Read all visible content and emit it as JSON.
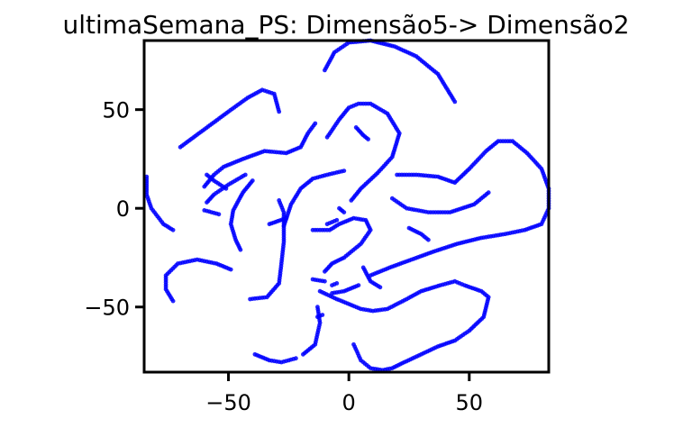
{
  "chart_data": {
    "type": "scatter",
    "title": "ultimaSemana_PS: Dimensão5-> Dimensão2",
    "xlabel": "",
    "ylabel": "",
    "xlim": [
      -85,
      83
    ],
    "ylim": [
      -83,
      85
    ],
    "xticks": [
      {
        "value": -50,
        "label": "−50"
      },
      {
        "value": 0,
        "label": "0"
      },
      {
        "value": 50,
        "label": "50"
      }
    ],
    "yticks": [
      {
        "value": 50,
        "label": "50"
      },
      {
        "value": 0,
        "label": "0"
      },
      {
        "value": -50,
        "label": "−50"
      }
    ],
    "grid": false,
    "series": [
      {
        "color": "#0000ff",
        "curves": [
          [
            [
              -70,
              31
            ],
            [
              -60,
              40
            ],
            [
              -50,
              49
            ],
            [
              -42,
              56
            ],
            [
              -36,
              60
            ],
            [
              -31,
              58
            ],
            [
              -29,
              49
            ]
          ],
          [
            [
              -9,
              36
            ],
            [
              -4,
              45
            ],
            [
              0,
              51
            ],
            [
              4,
              53
            ],
            [
              9,
              53
            ],
            [
              16,
              48
            ],
            [
              21,
              38
            ],
            [
              18,
              26
            ],
            [
              12,
              18
            ],
            [
              5,
              10
            ],
            [
              1,
              4
            ]
          ],
          [
            [
              -10,
              70
            ],
            [
              -6,
              79
            ],
            [
              0,
              84
            ],
            [
              9,
              85
            ],
            [
              19,
              82
            ],
            [
              28,
              77
            ],
            [
              37,
              68
            ],
            [
              44,
              54
            ]
          ],
          [
            [
              3,
              41
            ],
            [
              6,
              37
            ],
            [
              8,
              35
            ]
          ],
          [
            [
              -40,
              14
            ],
            [
              -44,
              8
            ],
            [
              -48,
              -1
            ],
            [
              -49,
              -8
            ],
            [
              -47,
              -16
            ],
            [
              -45,
              -21
            ]
          ],
          [
            [
              -41,
              -46
            ],
            [
              -34,
              -45
            ],
            [
              -29,
              -38
            ],
            [
              -28,
              -28
            ],
            [
              -27,
              -17
            ],
            [
              -27,
              -2
            ],
            [
              -29,
              4
            ]
          ],
          [
            [
              -19,
              -74
            ],
            [
              -14,
              -69
            ],
            [
              -12,
              -58
            ],
            [
              -13,
              -50
            ]
          ],
          [
            [
              -39,
              -74
            ],
            [
              -33,
              -77
            ],
            [
              -28,
              -78
            ],
            [
              -22,
              -76
            ]
          ],
          [
            [
              -84,
              16
            ],
            [
              -84,
              7
            ],
            [
              -82,
              0
            ],
            [
              -77,
              -8
            ],
            [
              -73,
              -11
            ]
          ],
          [
            [
              -73,
              -47
            ],
            [
              -76,
              -41
            ],
            [
              -76,
              -34
            ],
            [
              -71,
              -28
            ],
            [
              -63,
              -26
            ],
            [
              -55,
              -28
            ],
            [
              -49,
              -31
            ]
          ],
          [
            [
              -2,
              19
            ],
            [
              -9,
              17
            ],
            [
              -15,
              15
            ],
            [
              -20,
              10
            ],
            [
              -24,
              2
            ],
            [
              -27,
              -9
            ]
          ],
          [
            [
              -8,
              -11
            ],
            [
              -4,
              -8
            ],
            [
              2,
              -5
            ],
            [
              7,
              -6
            ],
            [
              9,
              -11
            ],
            [
              5,
              -18
            ],
            [
              -2,
              -25
            ],
            [
              -7,
              -28
            ],
            [
              -10,
              -32
            ]
          ],
          [
            [
              -13,
              -55
            ],
            [
              -11,
              -54
            ]
          ],
          [
            [
              -12,
              -42
            ],
            [
              -5,
              -46
            ],
            [
              5,
              -51
            ],
            [
              10,
              -52
            ],
            [
              16,
              -51
            ],
            [
              24,
              -46
            ],
            [
              30,
              -42
            ],
            [
              38,
              -39
            ],
            [
              44,
              -37
            ],
            [
              48,
              -39
            ],
            [
              55,
              -42
            ],
            [
              58,
              -45
            ],
            [
              56,
              -55
            ],
            [
              50,
              -62
            ],
            [
              44,
              -67
            ],
            [
              37,
              -70
            ],
            [
              30,
              -74
            ],
            [
              23,
              -78
            ],
            [
              18,
              -81
            ],
            [
              14,
              -82
            ],
            [
              9,
              -81
            ],
            [
              5,
              -77
            ],
            [
              2,
              -69
            ]
          ],
          [
            [
              -33,
              -8
            ],
            [
              -26,
              -5
            ]
          ],
          [
            [
              -15,
              -11
            ],
            [
              -9,
              -11
            ]
          ],
          [
            [
              -9,
              -8
            ],
            [
              -5,
              -6
            ]
          ],
          [
            [
              -15,
              -36
            ],
            [
              -10,
              -37
            ]
          ],
          [
            [
              -7,
              -39
            ],
            [
              -5,
              -38
            ]
          ],
          [
            [
              -2,
              -2
            ],
            [
              -4,
              0
            ]
          ],
          [
            [
              -43,
              17
            ],
            [
              -50,
              12
            ],
            [
              -56,
              7
            ],
            [
              -59,
              3
            ]
          ],
          [
            [
              -60,
              -1
            ],
            [
              -57,
              -2
            ],
            [
              -54,
              -3
            ]
          ],
          [
            [
              -51,
              10
            ],
            [
              -56,
              14
            ],
            [
              -59,
              17
            ]
          ],
          [
            [
              -7,
              -43
            ],
            [
              -2,
              -42
            ],
            [
              4,
              -39
            ]
          ],
          [
            [
              6,
              -30
            ],
            [
              9,
              -37
            ],
            [
              13,
              -40
            ]
          ],
          [
            [
              25,
              -10
            ],
            [
              30,
              -13
            ],
            [
              33,
              -16
            ]
          ],
          [
            [
              20,
              17
            ],
            [
              28,
              17
            ],
            [
              37,
              16
            ],
            [
              44,
              13
            ],
            [
              50,
              20
            ],
            [
              57,
              29
            ],
            [
              62,
              34
            ],
            [
              68,
              34
            ],
            [
              74,
              28
            ],
            [
              80,
              20
            ],
            [
              83,
              10
            ],
            [
              83,
              0
            ],
            [
              80,
              -8
            ],
            [
              73,
              -11
            ],
            [
              65,
              -13
            ],
            [
              55,
              -15
            ],
            [
              45,
              -18
            ],
            [
              35,
              -22
            ],
            [
              26,
              -26
            ],
            [
              17,
              -30
            ],
            [
              9,
              -34
            ]
          ],
          [
            [
              18,
              5
            ],
            [
              24,
              0
            ],
            [
              33,
              -2
            ],
            [
              42,
              -2
            ],
            [
              52,
              2
            ],
            [
              58,
              8
            ]
          ],
          [
            [
              -14,
              43
            ],
            [
              -17,
              38
            ],
            [
              -20,
              31
            ],
            [
              -26,
              28
            ],
            [
              -35,
              29
            ],
            [
              -44,
              25
            ],
            [
              -52,
              21
            ],
            [
              -56,
              17
            ],
            [
              -60,
              11
            ]
          ]
        ]
      }
    ]
  }
}
